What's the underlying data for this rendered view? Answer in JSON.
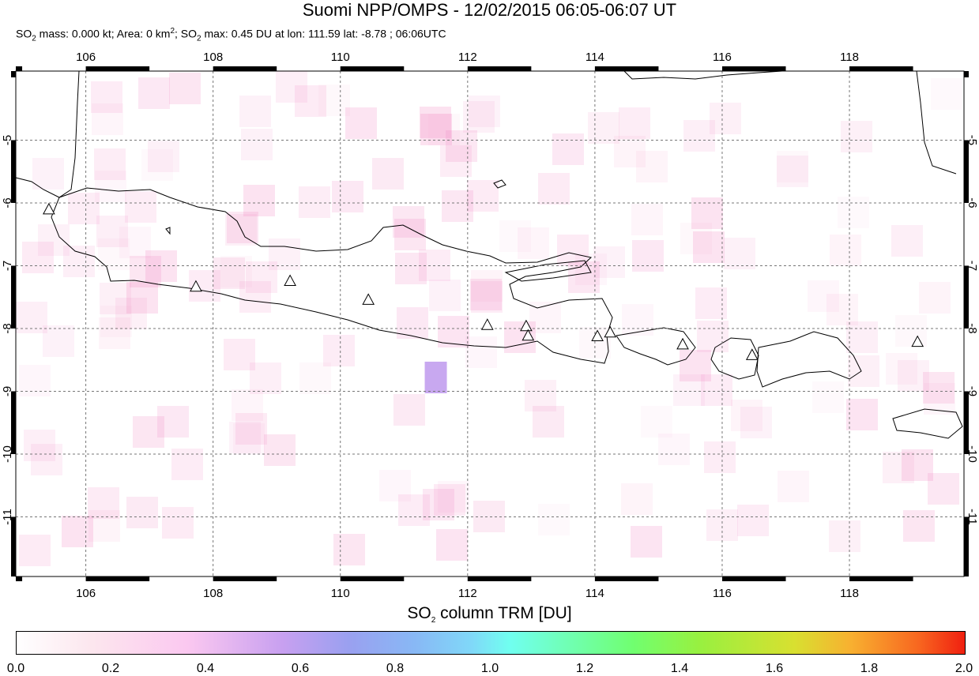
{
  "header": {
    "title": "Suomi NPP/OMPS - 12/02/2015 06:05-06:07 UT",
    "subtitle_a": "SO",
    "subtitle_b": " mass: 0.000 kt; Area: 0 km",
    "subtitle_c": "; SO",
    "subtitle_d": " max: 0.45 DU at lon: 111.59 lat: -8.78 ; 06:06UTC",
    "sub2": "2",
    "sup2": "2"
  },
  "map": {
    "lon_range": [
      104.9,
      119.8
    ],
    "lat_range": [
      -11.95,
      -3.9
    ],
    "lon_ticks": [
      "106",
      "108",
      "110",
      "112",
      "114",
      "116",
      "118"
    ],
    "lat_ticks": [
      "-5",
      "-6",
      "-7",
      "-8",
      "-9",
      "-10",
      "-11"
    ],
    "volcano_icon": "triangle-icon",
    "volcanoes": [
      {
        "lon": 105.42,
        "lat": -6.1
      },
      {
        "lon": 107.73,
        "lat": -7.33
      },
      {
        "lon": 109.21,
        "lat": -7.24
      },
      {
        "lon": 110.44,
        "lat": -7.54
      },
      {
        "lon": 112.31,
        "lat": -7.94
      },
      {
        "lon": 112.92,
        "lat": -7.96
      },
      {
        "lon": 112.95,
        "lat": -8.11
      },
      {
        "lon": 114.04,
        "lat": -8.12
      },
      {
        "lon": 114.24,
        "lat": -8.06
      },
      {
        "lon": 115.38,
        "lat": -8.25
      },
      {
        "lon": 116.47,
        "lat": -8.42
      },
      {
        "lon": 119.07,
        "lat": -8.21
      }
    ],
    "so2_max_color": "#c8a8f0"
  },
  "colorbar": {
    "title_a": "SO",
    "title_sub": "2",
    "title_b": " column TRM [DU]",
    "ticks": [
      "0.0",
      "0.2",
      "0.4",
      "0.6",
      "0.8",
      "1.0",
      "1.2",
      "1.4",
      "1.6",
      "1.8",
      "2.0"
    ]
  }
}
